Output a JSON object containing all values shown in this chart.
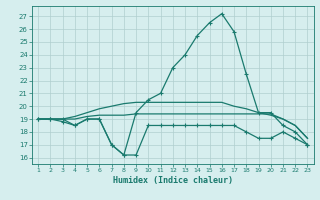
{
  "x": [
    1,
    2,
    3,
    4,
    5,
    6,
    7,
    8,
    9,
    10,
    11,
    12,
    13,
    14,
    15,
    16,
    17,
    18,
    19,
    20,
    21,
    22,
    23
  ],
  "line_max": [
    19,
    19,
    19,
    18.5,
    19,
    19,
    17,
    16.2,
    19.5,
    20.5,
    21,
    23,
    24,
    25.5,
    26.5,
    27.2,
    25.8,
    22.5,
    19.5,
    19.5,
    18.5,
    18,
    17
  ],
  "line_min": [
    19,
    19,
    18.8,
    18.5,
    19,
    19,
    17,
    16.2,
    16.2,
    18.5,
    18.5,
    18.5,
    18.5,
    18.5,
    18.5,
    18.5,
    18.5,
    18,
    17.5,
    17.5,
    18,
    17.5,
    17
  ],
  "line_avg1": [
    19,
    19,
    19,
    19,
    19.2,
    19.3,
    19.3,
    19.3,
    19.4,
    19.4,
    19.4,
    19.4,
    19.4,
    19.4,
    19.4,
    19.4,
    19.4,
    19.4,
    19.4,
    19.4,
    19.0,
    18.5,
    17.5
  ],
  "line_avg2": [
    19,
    19,
    19,
    19.2,
    19.5,
    19.8,
    20.0,
    20.2,
    20.3,
    20.3,
    20.3,
    20.3,
    20.3,
    20.3,
    20.3,
    20.3,
    20.0,
    19.8,
    19.5,
    19.3,
    19.0,
    18.5,
    17.5
  ],
  "bg_color": "#d6eeee",
  "grid_color": "#b0cfcf",
  "line_color": "#1a7a6e",
  "xlabel": "Humidex (Indice chaleur)",
  "ylim": [
    15.5,
    27.8
  ],
  "xlim": [
    0.5,
    23.5
  ],
  "yticks": [
    16,
    17,
    18,
    19,
    20,
    21,
    22,
    23,
    24,
    25,
    26,
    27
  ],
  "xticks": [
    1,
    2,
    3,
    4,
    5,
    6,
    7,
    8,
    9,
    10,
    11,
    12,
    13,
    14,
    15,
    16,
    17,
    18,
    19,
    20,
    21,
    22,
    23
  ]
}
